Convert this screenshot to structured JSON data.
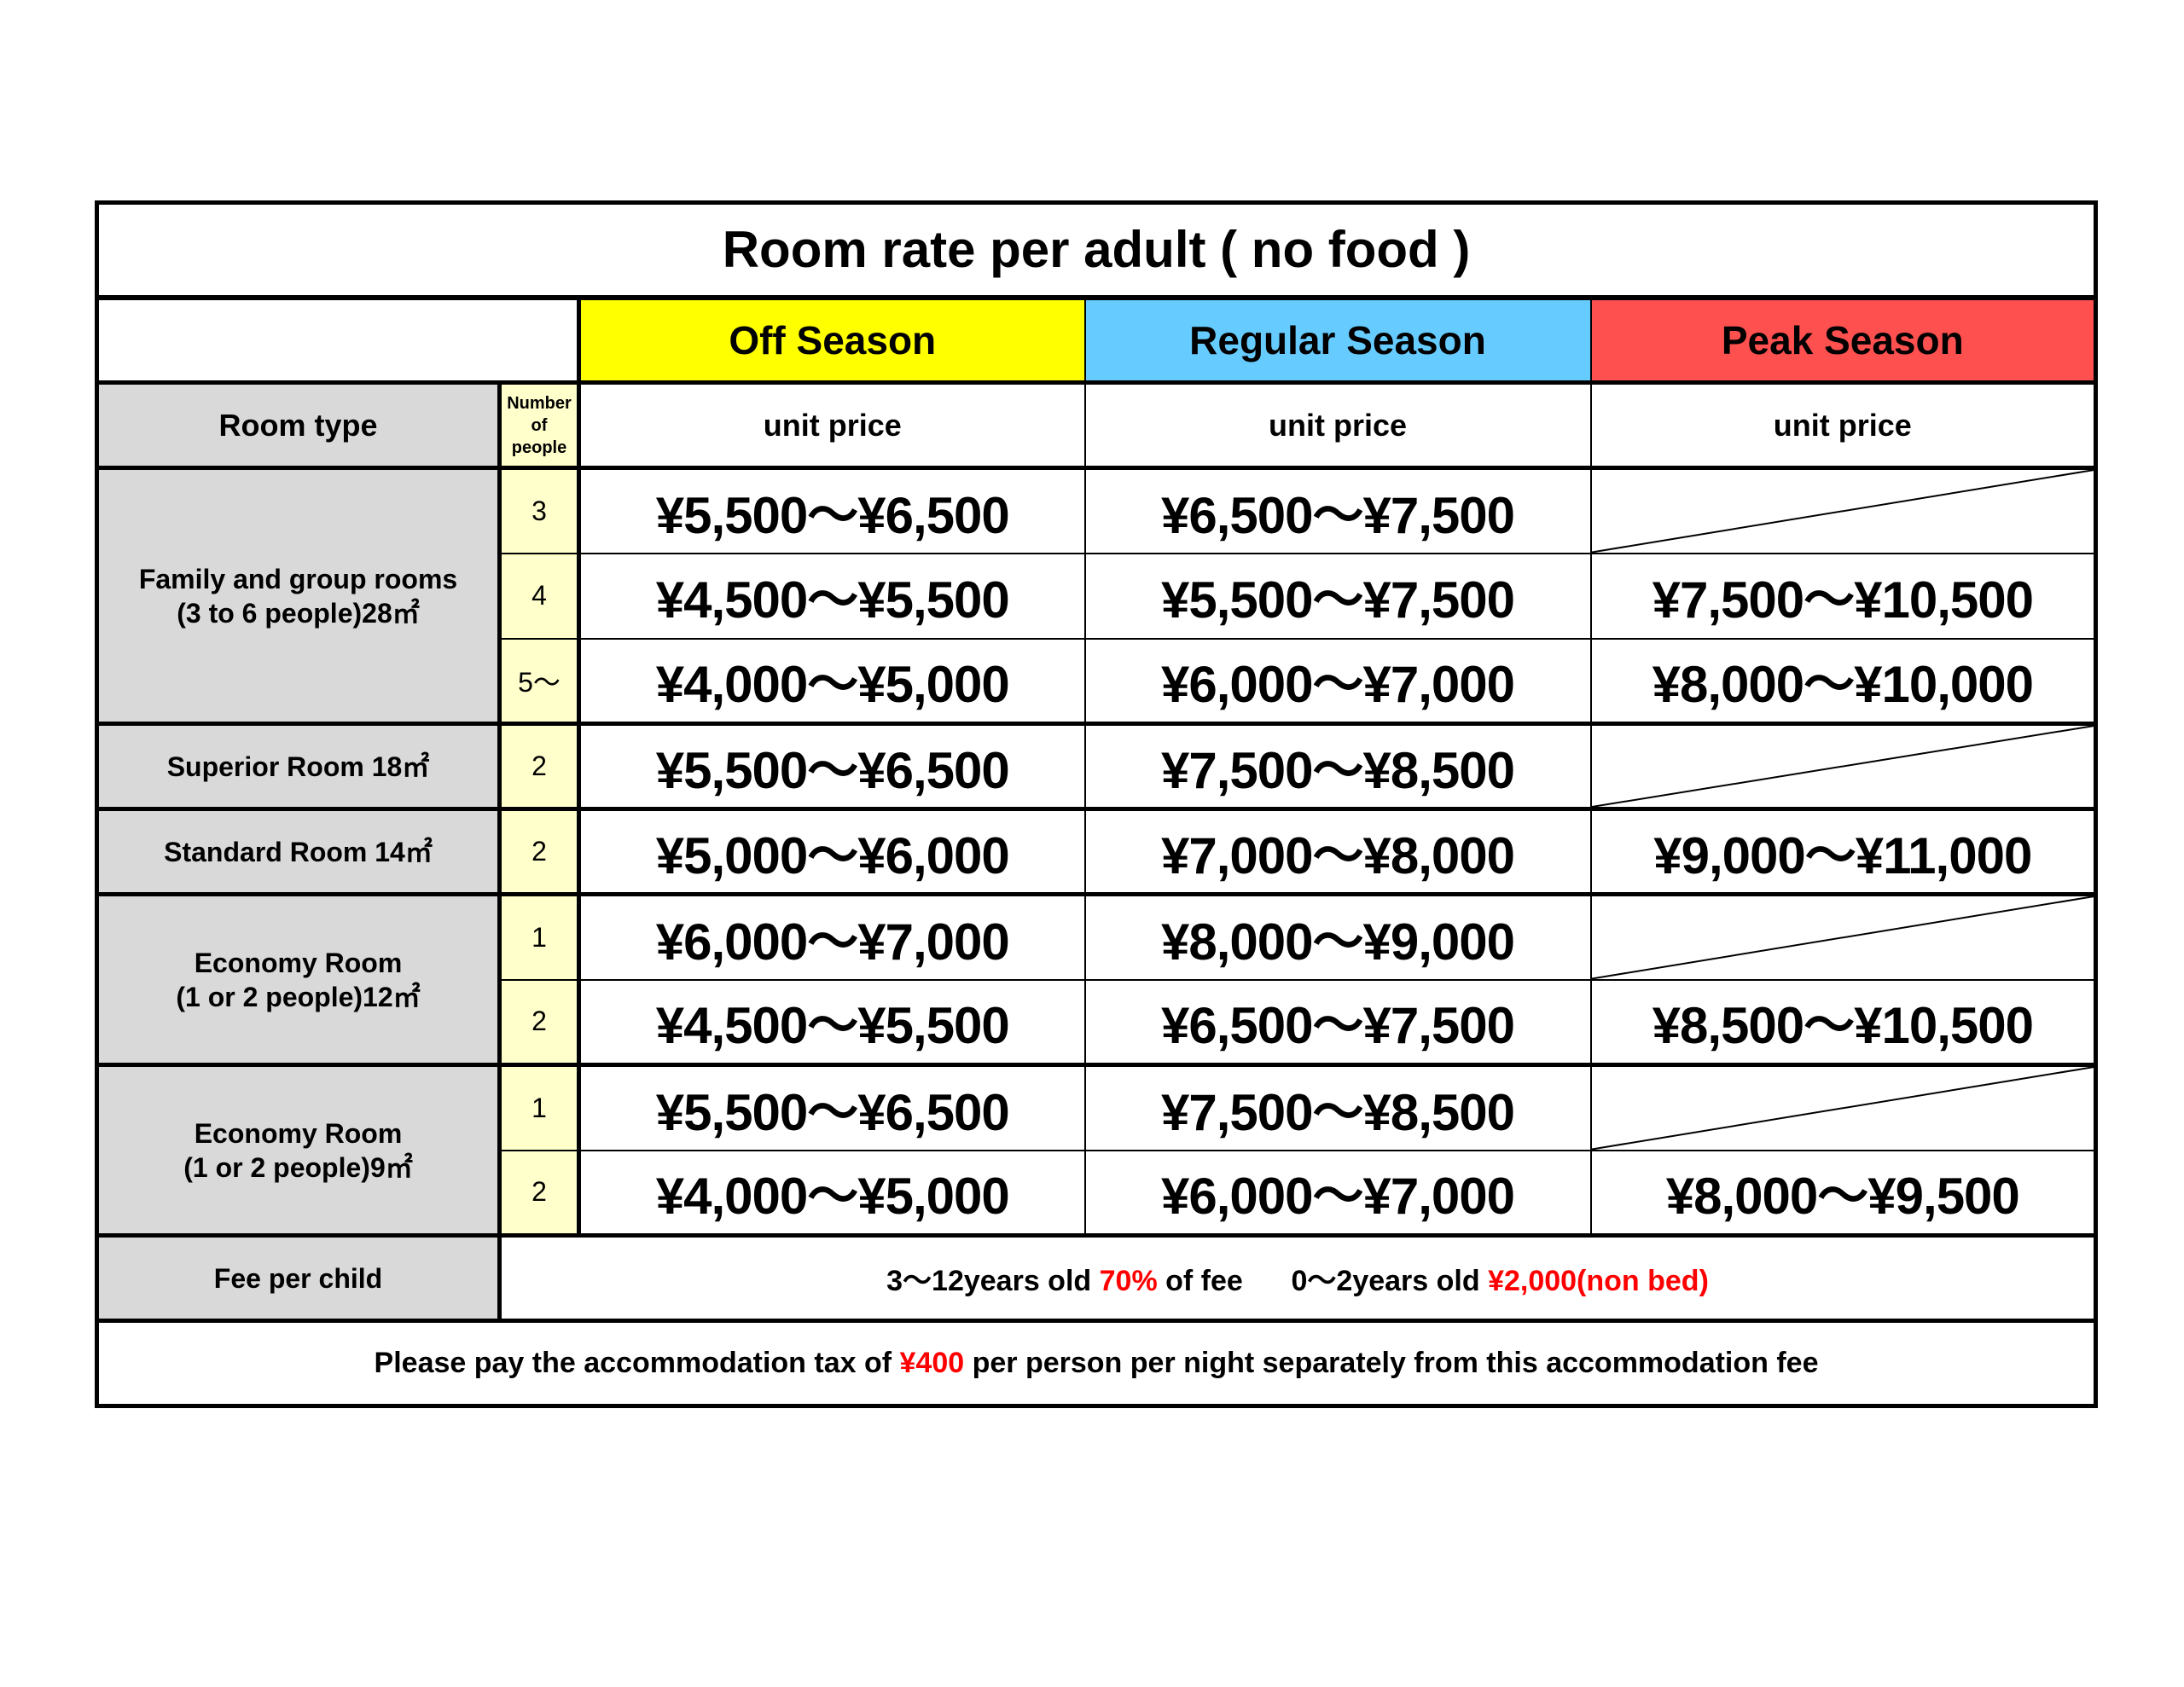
{
  "title": "Room rate per adult ( no food )",
  "seasons": [
    {
      "label": "Off Season",
      "color": "#ffff00"
    },
    {
      "label": "Regular Season",
      "color": "#66ccff"
    },
    {
      "label": "Peak Season",
      "color": "#ff5050"
    }
  ],
  "header": {
    "room_type": "Room type",
    "number_of_people": [
      "Number",
      "of",
      "people"
    ],
    "unit_price": "unit price"
  },
  "rows": [
    {
      "room": [
        "Family and group rooms",
        "(3 to 6 people)28㎡"
      ],
      "people": "3",
      "off": "¥5,500〜¥6,500",
      "regular": "¥6,500〜¥7,500",
      "peak": ""
    },
    {
      "people": "4",
      "off": "¥4,500〜¥5,500",
      "regular": "¥5,500〜¥7,500",
      "peak": "¥7,500〜¥10,500"
    },
    {
      "people": "5〜",
      "off": "¥4,000〜¥5,000",
      "regular": "¥6,000〜¥7,000",
      "peak": "¥8,000〜¥10,000"
    },
    {
      "room": [
        "Superior Room 18㎡"
      ],
      "people": "2",
      "off": "¥5,500〜¥6,500",
      "regular": "¥7,500〜¥8,500",
      "peak": ""
    },
    {
      "room": [
        "Standard Room  14㎡"
      ],
      "people": "2",
      "off": "¥5,000〜¥6,000",
      "regular": "¥7,000〜¥8,000",
      "peak": "¥9,000〜¥11,000"
    },
    {
      "room": [
        "Economy Room",
        "(1 or 2 people)12㎡"
      ],
      "people": "1",
      "off": "¥6,000〜¥7,000",
      "regular": "¥8,000〜¥9,000",
      "peak": ""
    },
    {
      "people": "2",
      "off": "¥4,500〜¥5,500",
      "regular": "¥6,500〜¥7,500",
      "peak": "¥8,500〜¥10,500"
    },
    {
      "room": [
        "Economy Room",
        "(1 or 2 people)9㎡"
      ],
      "people": "1",
      "off": "¥5,500〜¥6,500",
      "regular": "¥7,500〜¥8,500",
      "peak": ""
    },
    {
      "people": "2",
      "off": "¥4,000〜¥5,000",
      "regular": "¥6,000〜¥7,000",
      "peak": "¥8,000〜¥9,500"
    }
  ],
  "child_fee": {
    "label": "Fee per child",
    "age1": "3〜12years old ",
    "pct": "70%",
    "of_fee": " of fee",
    "age2": "0〜2years old ",
    "infant": "¥2,000(non bed)"
  },
  "tax": {
    "pre": "Please pay the accommodation tax of ",
    "amount": "¥400",
    "post": " per person per night separately from this accommodation fee"
  }
}
